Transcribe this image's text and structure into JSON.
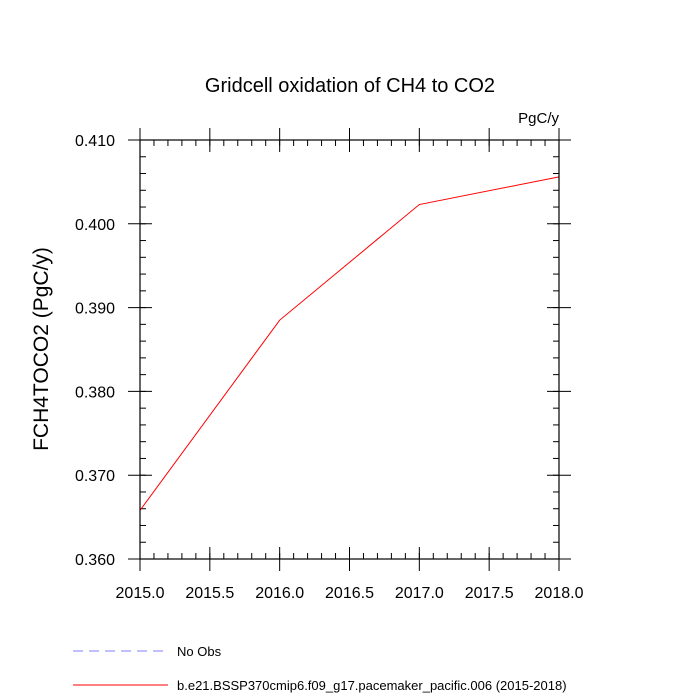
{
  "chart_data": {
    "type": "line",
    "title": "Gridcell oxidation of CH4 to CO2",
    "units_label": "PgC/y",
    "xlabel": "",
    "ylabel": "FCH4TOCO2  (PgC/y)",
    "xlim": [
      2015.0,
      2018.0
    ],
    "ylim": [
      0.36,
      0.41
    ],
    "xticks": [
      2015.0,
      2015.5,
      2016.0,
      2016.5,
      2017.0,
      2017.5,
      2018.0
    ],
    "xtick_labels": [
      "2015.0",
      "2015.5",
      "2016.0",
      "2016.5",
      "2017.0",
      "2017.5",
      "2018.0"
    ],
    "yticks": [
      0.36,
      0.37,
      0.38,
      0.39,
      0.4,
      0.41
    ],
    "ytick_labels": [
      "0.360",
      "0.370",
      "0.380",
      "0.390",
      "0.400",
      "0.410"
    ],
    "x_minor_step": 0.1,
    "y_minor_step": 0.002,
    "grid": false,
    "series": [
      {
        "name": "b.e21.BSSP370cmip6.f09_g17.pacemaker_pacific.006 (2015-2018)",
        "color": "#ff0000",
        "style": "solid",
        "x": [
          2015.0,
          2016.0,
          2017.0,
          2018.0
        ],
        "values": [
          0.3658,
          0.3885,
          0.4023,
          0.4056
        ]
      }
    ],
    "legend": {
      "position": "bottom-left",
      "entries": [
        {
          "label": "No Obs",
          "color": "#8080ff",
          "style": "dashed"
        },
        {
          "label": "b.e21.BSSP370cmip6.f09_g17.pacemaker_pacific.006 (2015-2018)",
          "color": "#ff0000",
          "style": "solid"
        }
      ]
    }
  }
}
